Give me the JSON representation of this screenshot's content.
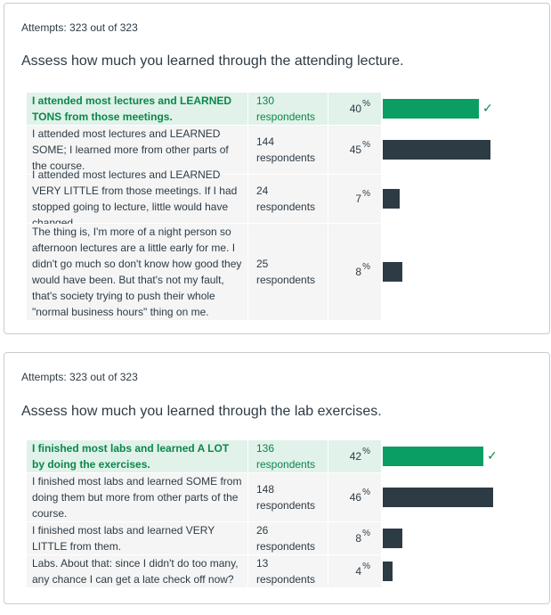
{
  "colors": {
    "correct_bar": "#0b9e63",
    "bar": "#2d3b45",
    "correct_bg": "#e0f2e9",
    "correct_text": "#0b874b"
  },
  "quizzes": [
    {
      "attempts": "Attempts: 323 out of 323",
      "question": "Assess how much you learned through the attending lecture.",
      "answers": [
        {
          "text": "I attended most lectures and LEARNED TONS from those meetings.",
          "count": "130",
          "unit": "respondents",
          "pct": "40",
          "pct_sign": "%",
          "correct": true
        },
        {
          "text": "I attended most lectures and LEARNED SOME; I learned more from other parts of the course.",
          "count": "144",
          "unit": "respondents",
          "pct": "45",
          "pct_sign": "%",
          "correct": false
        },
        {
          "text": "I attended most lectures and LEARNED VERY LITTLE from those meetings. If I had stopped going to lecture, little would have changed.",
          "count": "24",
          "unit": "respondents",
          "pct": "7",
          "pct_sign": "%",
          "correct": false
        },
        {
          "text": "The thing is, I'm more of a night person so afternoon lectures are a little early for me. I didn't go much so don't know how good they would have been. But that's not my fault, that's society trying to push their whole \"normal business hours\" thing on me.",
          "count": "25",
          "unit": "respondents",
          "pct": "8",
          "pct_sign": "%",
          "correct": false
        }
      ]
    },
    {
      "attempts": "Attempts: 323 out of 323",
      "question": "Assess how much you learned through the lab exercises.",
      "answers": [
        {
          "text": "I finished most labs and learned A LOT by doing the exercises.",
          "count": "136",
          "unit": "respondents",
          "pct": "42",
          "pct_sign": "%",
          "correct": true
        },
        {
          "text": "I finished most labs and learned SOME from doing them but more from other parts of the course.",
          "count": "148",
          "unit": "respondents",
          "pct": "46",
          "pct_sign": "%",
          "correct": false
        },
        {
          "text": "I finished most labs and learned VERY LITTLE from them.",
          "count": "26",
          "unit": "respondents",
          "pct": "8",
          "pct_sign": "%",
          "correct": false
        },
        {
          "text": "Labs. About that: since I didn't do too many, any chance I can get a late check off now?",
          "count": "13",
          "unit": "respondents",
          "pct": "4",
          "pct_sign": "%",
          "correct": false
        }
      ]
    }
  ]
}
